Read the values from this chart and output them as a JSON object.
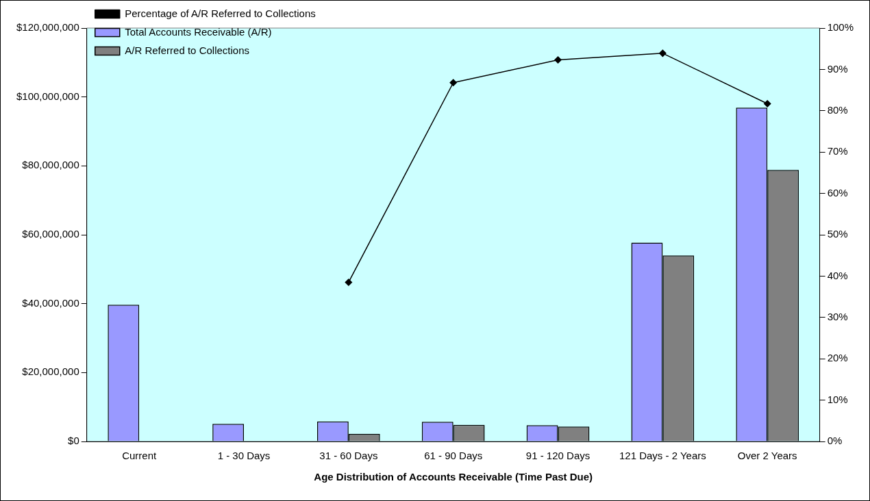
{
  "chart_data": {
    "type": "bar",
    "xlabel": "Age Distribution of Accounts Receivable (Time Past Due)",
    "categories": [
      "Current",
      "1 - 30 Days",
      "31 - 60 Days",
      "61 - 90 Days",
      "91 - 120 Days",
      "121 Days - 2 Years",
      "Over 2 Years"
    ],
    "series": [
      {
        "name": "Total Accounts Receivable (A/R)",
        "color": "#9999ff",
        "values": [
          39700000,
          5100000,
          5800000,
          5700000,
          4700000,
          57700000,
          96900000
        ]
      },
      {
        "name": "A/R Referred to Collections",
        "color": "#808080",
        "values": [
          null,
          null,
          2200000,
          4800000,
          4300000,
          54000000,
          78800000
        ]
      },
      {
        "name": "Percentage of A/R Referred to Collections",
        "type": "line",
        "axis": "y2",
        "color": "#000000",
        "values": [
          null,
          null,
          38.5,
          86.8,
          92.3,
          93.9,
          81.7
        ]
      }
    ],
    "ylim": [
      0,
      120000000
    ],
    "yticks": [
      {
        "value": 0,
        "label": "$0"
      },
      {
        "value": 20000000,
        "label": "$20,000,000"
      },
      {
        "value": 40000000,
        "label": "$40,000,000"
      },
      {
        "value": 60000000,
        "label": "$60,000,000"
      },
      {
        "value": 80000000,
        "label": "$80,000,000"
      },
      {
        "value": 100000000,
        "label": "$100,000,000"
      },
      {
        "value": 120000000,
        "label": "$120,000,000"
      }
    ],
    "y2lim": [
      0,
      100
    ],
    "y2ticks": [
      {
        "value": 0,
        "label": "0%"
      },
      {
        "value": 10,
        "label": "10%"
      },
      {
        "value": 20,
        "label": "20%"
      },
      {
        "value": 30,
        "label": "30%"
      },
      {
        "value": 40,
        "label": "40%"
      },
      {
        "value": 50,
        "label": "50%"
      },
      {
        "value": 60,
        "label": "60%"
      },
      {
        "value": 70,
        "label": "70%"
      },
      {
        "value": 80,
        "label": "80%"
      },
      {
        "value": 90,
        "label": "90%"
      },
      {
        "value": 100,
        "label": "100%"
      }
    ],
    "grid": false,
    "legend": "top left",
    "marker": "diamond",
    "line_style": "solid"
  }
}
